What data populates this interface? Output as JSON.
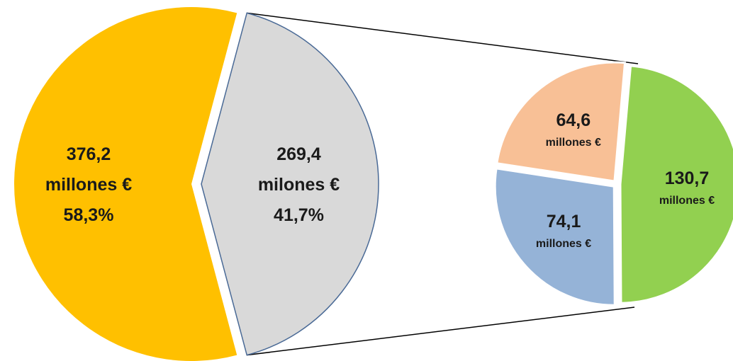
{
  "chart_data": {
    "type": "pie",
    "main_pie": {
      "slices": [
        {
          "value": 376.2,
          "value_text": "376,2",
          "unit_text": "millones €",
          "percent_text": "58,3%",
          "color": "#FFC000",
          "exploded": false
        },
        {
          "value": 269.4,
          "value_text": "269,4",
          "unit_text": "milones €",
          "percent_text": "41,7%",
          "color": "#D9D9D9",
          "exploded": true
        }
      ]
    },
    "breakdown_pie": {
      "of_slice": 1,
      "slices": [
        {
          "value": 64.6,
          "value_text": "64,6",
          "unit_text": "millones €",
          "color": "#F8C096"
        },
        {
          "value": 74.1,
          "value_text": "74,1",
          "unit_text": "millones €",
          "color": "#95B3D7"
        },
        {
          "value": 130.7,
          "value_text": "130,7",
          "unit_text": "millones €",
          "color": "#92D050"
        }
      ]
    }
  }
}
